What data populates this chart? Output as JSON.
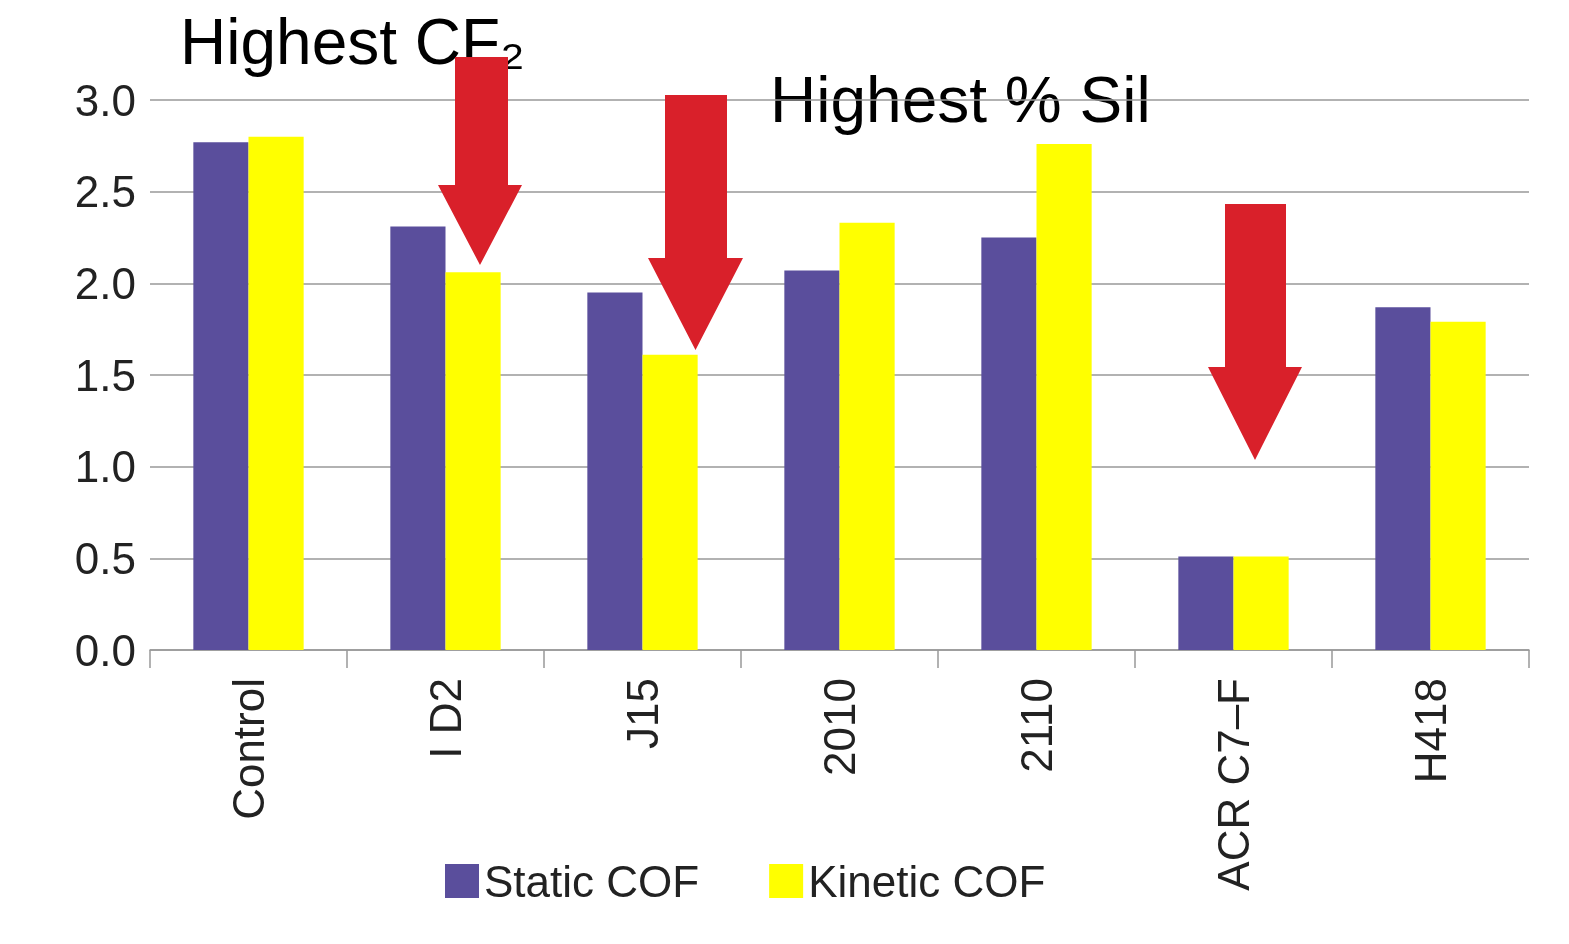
{
  "chart_data": {
    "type": "bar",
    "categories": [
      "Control",
      "I D2",
      "J15",
      "2010",
      "2110",
      "ACR C7–F",
      "H418"
    ],
    "series": [
      {
        "name": "Static COF",
        "color": "#5a4e9c",
        "values": [
          2.77,
          2.31,
          1.95,
          2.07,
          2.25,
          0.51,
          1.87
        ]
      },
      {
        "name": "Kinetic COF",
        "color": "#ffff00",
        "values": [
          2.8,
          2.06,
          1.61,
          2.33,
          2.76,
          0.51,
          1.79
        ]
      }
    ],
    "ylim": [
      0,
      3
    ],
    "yticks": [
      {
        "value": 0,
        "label": "0.0"
      },
      {
        "value": 0.5,
        "label": "0.5"
      },
      {
        "value": 1,
        "label": "1.0"
      },
      {
        "value": 1.5,
        "label": "1.5"
      },
      {
        "value": 2,
        "label": "2.0"
      },
      {
        "value": 2.5,
        "label": "2.5"
      },
      {
        "value": 3,
        "label": "3.0"
      }
    ],
    "grid": "y",
    "legend": "bottom",
    "annotations": [
      "Highest CF₂",
      "Highest % Sil"
    ]
  }
}
